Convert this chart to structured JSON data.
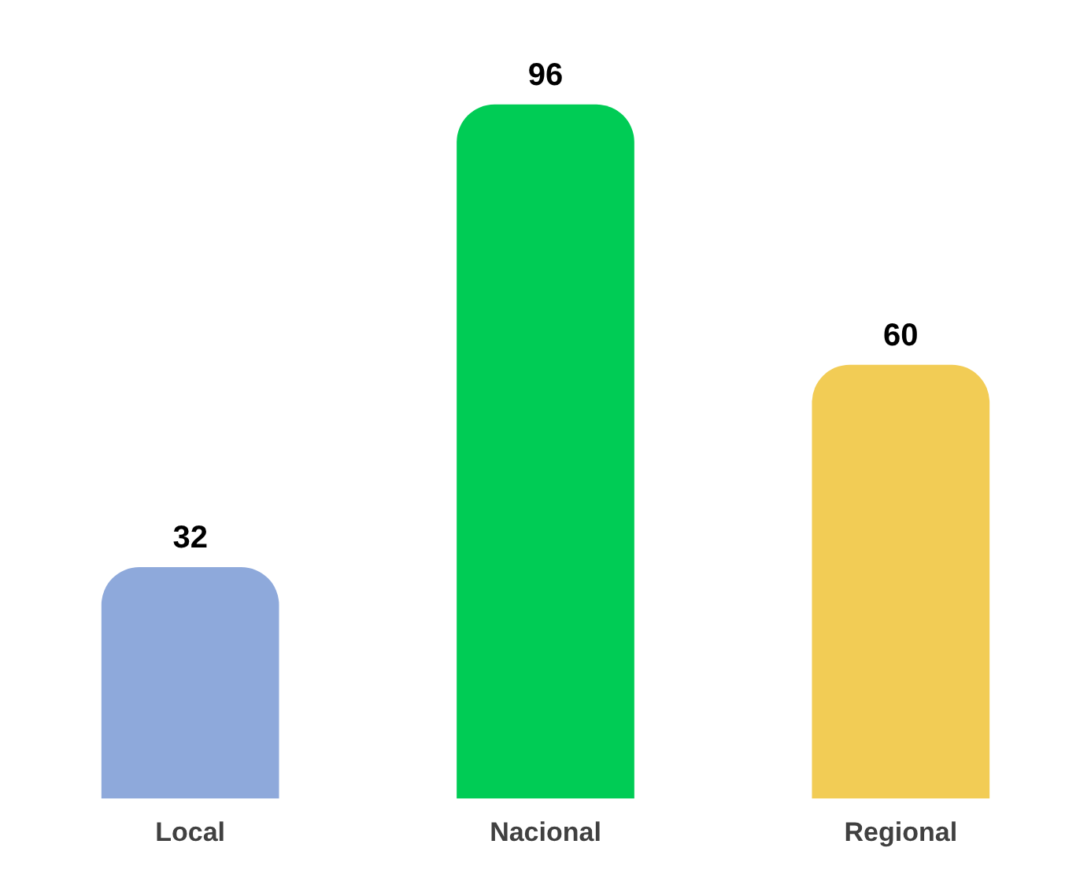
{
  "chart_data": {
    "type": "bar",
    "categories": [
      "Local",
      "Nacional",
      "Regional"
    ],
    "values": [
      32,
      96,
      60
    ],
    "colors": [
      "#8ea9db",
      "#00cc55",
      "#f2cc55"
    ],
    "data_labels": true,
    "grid": false,
    "legend": false
  }
}
